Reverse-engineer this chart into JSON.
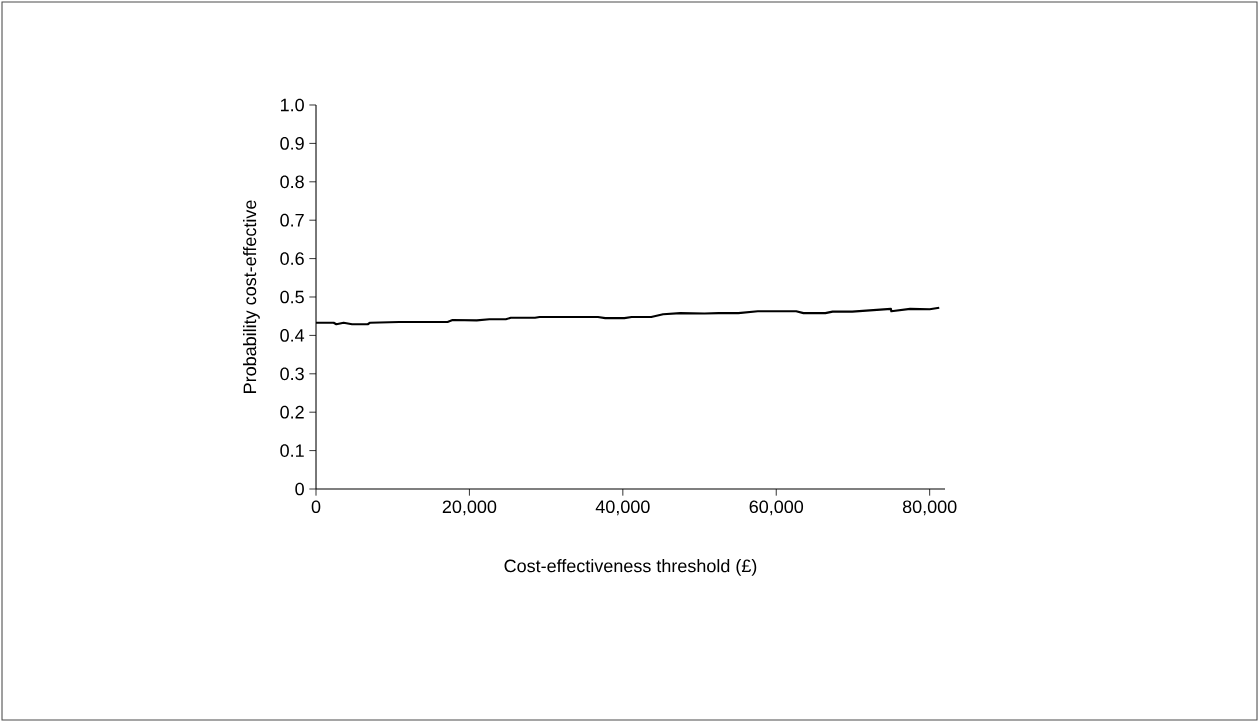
{
  "chart_data": {
    "type": "line",
    "xlabel": "Cost-effectiveness threshold (£)",
    "ylabel": "Probability cost-effective",
    "x": [
      0,
      2300,
      2650,
      3600,
      4700,
      6750,
      7050,
      10850,
      17150,
      17800,
      20950,
      22600,
      24750,
      25400,
      28550,
      29150,
      36750,
      37700,
      40200,
      41150,
      43700,
      45250,
      47500,
      50650,
      52500,
      55050,
      57600,
      62600,
      63550,
      66400,
      67350,
      69900,
      74950,
      75000,
      77450,
      80000,
      81250
    ],
    "series": [
      {
        "color": "#000000",
        "values": [
          0.433,
          0.433,
          0.429,
          0.433,
          0.429,
          0.429,
          0.433,
          0.435,
          0.435,
          0.44,
          0.439,
          0.442,
          0.442,
          0.446,
          0.446,
          0.448,
          0.448,
          0.445,
          0.445,
          0.448,
          0.448,
          0.455,
          0.458,
          0.457,
          0.458,
          0.458,
          0.463,
          0.463,
          0.458,
          0.458,
          0.462,
          0.462,
          0.469,
          0.463,
          0.469,
          0.468,
          0.472
        ]
      }
    ],
    "xlim": [
      0,
      82000
    ],
    "ylim": [
      0,
      1
    ],
    "xticks": [
      0,
      {
        "value": 20000,
        "label": "20,000"
      },
      {
        "value": 40000,
        "label": "40,000"
      },
      {
        "value": 60000,
        "label": "60,000"
      },
      {
        "value": 80000,
        "label": "80,000"
      }
    ],
    "yticks": [
      0,
      0.1,
      0.2,
      0.3,
      0.4,
      0.5,
      0.6,
      0.7,
      0.8,
      0.9,
      {
        "value": 1,
        "label": "1.0"
      }
    ],
    "line_style": "solid"
  }
}
